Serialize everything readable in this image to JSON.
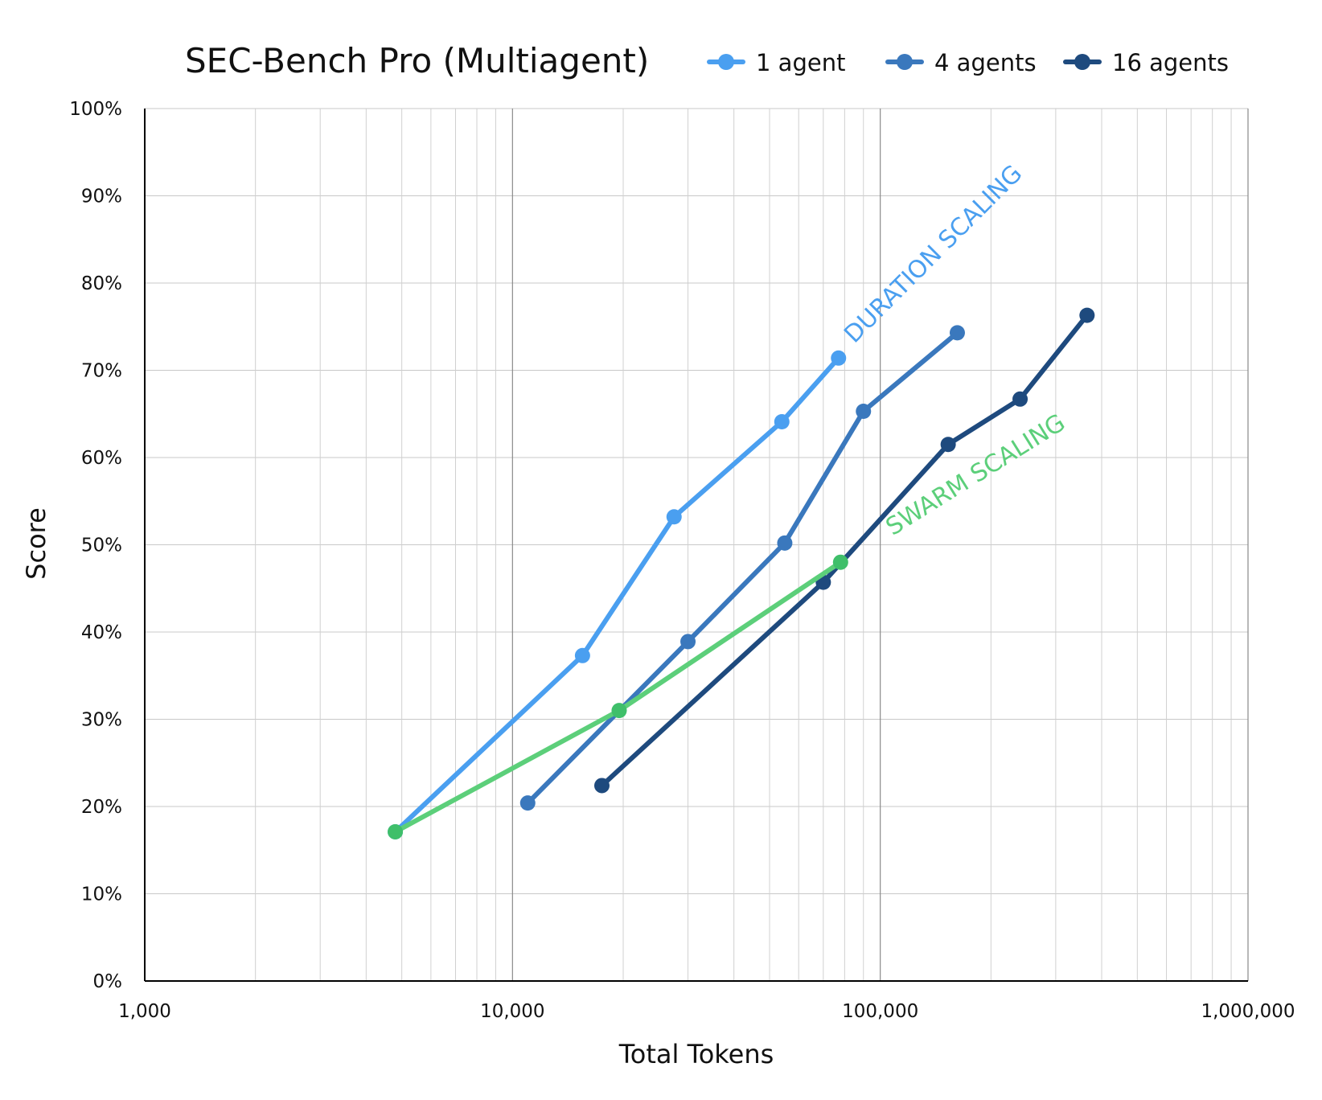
{
  "chart_data": {
    "type": "line",
    "title": "SEC-Bench Pro (Multiagent)",
    "xlabel": "Total Tokens",
    "ylabel": "Score",
    "xscale": "log",
    "xlim": [
      1000,
      1000000
    ],
    "ylim": [
      0,
      100
    ],
    "x_ticks": [
      1000,
      10000,
      100000,
      1000000
    ],
    "x_tick_labels": [
      "1,000",
      "10,000",
      "100,000",
      "1,000,000"
    ],
    "y_ticks": [
      0,
      10,
      20,
      30,
      40,
      50,
      60,
      70,
      80,
      90,
      100
    ],
    "y_tick_labels": [
      "0%",
      "10%",
      "20%",
      "30%",
      "40%",
      "50%",
      "60%",
      "70%",
      "80%",
      "90%",
      "100%"
    ],
    "grid": true,
    "legend_position": "top-right",
    "series": [
      {
        "name": "1 agent",
        "color": "#4a9ff0",
        "points": [
          [
            4800,
            17.1
          ],
          [
            15500,
            37.3
          ],
          [
            27500,
            53.2
          ],
          [
            54000,
            64.1
          ],
          [
            77000,
            71.4
          ]
        ]
      },
      {
        "name": "4 agents",
        "color": "#3a78bd",
        "points": [
          [
            11000,
            20.4
          ],
          [
            30000,
            38.9
          ],
          [
            55000,
            50.2
          ],
          [
            90000,
            65.3
          ],
          [
            162000,
            74.3
          ]
        ]
      },
      {
        "name": "16 agents",
        "color": "#1e4a7e",
        "points": [
          [
            17500,
            22.4
          ],
          [
            70000,
            45.7
          ],
          [
            153000,
            61.5
          ],
          [
            240000,
            66.7
          ],
          [
            365000,
            76.3
          ]
        ]
      },
      {
        "color": "#5ccf7a",
        "marker_color": "#3fbf6a",
        "points": [
          [
            4800,
            17.1
          ],
          [
            19500,
            31.0
          ],
          [
            78000,
            48.0
          ]
        ]
      }
    ],
    "annotations": [
      {
        "text": "DURATION SCALING",
        "color": "#4a9ff0",
        "x": 85000,
        "y": 73,
        "angle": -45
      },
      {
        "text": "SWARM SCALING",
        "color": "#5ccf7a",
        "x": 108000,
        "y": 51,
        "angle": -32
      }
    ]
  }
}
